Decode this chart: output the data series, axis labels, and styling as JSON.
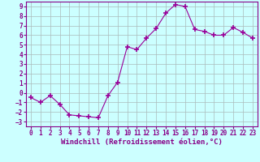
{
  "x": [
    0,
    1,
    2,
    3,
    4,
    5,
    6,
    7,
    8,
    9,
    10,
    11,
    12,
    13,
    14,
    15,
    16,
    17,
    18,
    19,
    20,
    21,
    22,
    23
  ],
  "y": [
    -0.5,
    -1.0,
    -0.3,
    -1.2,
    -2.3,
    -2.4,
    -2.5,
    -2.6,
    -0.3,
    1.1,
    4.8,
    4.5,
    5.7,
    6.7,
    8.3,
    9.2,
    9.0,
    6.6,
    6.4,
    6.0,
    6.0,
    6.8,
    6.3,
    5.7
  ],
  "line_color": "#990099",
  "marker": "+",
  "marker_size": 4,
  "bg_color": "#ccffff",
  "grid_color": "#aabbbb",
  "xlabel": "Windchill (Refroidissement éolien,°C)",
  "xlim": [
    -0.5,
    23.5
  ],
  "ylim": [
    -3.5,
    9.5
  ],
  "yticks": [
    -3,
    -2,
    -1,
    0,
    1,
    2,
    3,
    4,
    5,
    6,
    7,
    8,
    9
  ],
  "xticks": [
    0,
    1,
    2,
    3,
    4,
    5,
    6,
    7,
    8,
    9,
    10,
    11,
    12,
    13,
    14,
    15,
    16,
    17,
    18,
    19,
    20,
    21,
    22,
    23
  ],
  "tick_fontsize": 5.5,
  "xlabel_fontsize": 6.5,
  "text_color": "#880088",
  "spine_color": "#880088",
  "lw": 0.8,
  "marker_lw": 1.2
}
